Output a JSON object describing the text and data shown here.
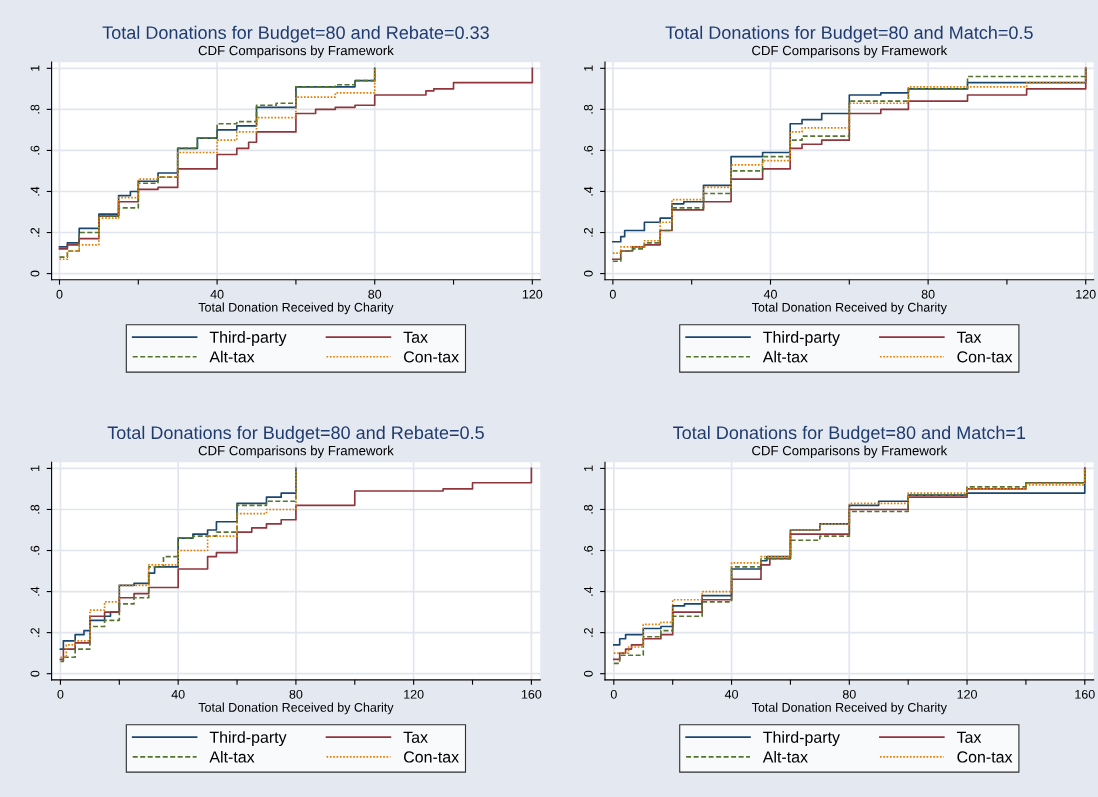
{
  "chart_data": [
    {
      "type": "step",
      "title": "Total Donations for Budget=80 and Rebate=0.33",
      "subtitle": "CDF Comparisons by Framework",
      "xlabel": "Total Donation Received by Charity",
      "xlim": [
        -2,
        122
      ],
      "ylim": [
        -0.03,
        1.03
      ],
      "xticks": [
        0,
        {
          "value": 20,
          "label": null
        },
        40,
        {
          "value": 60,
          "label": null
        },
        80,
        {
          "value": 100,
          "label": null
        },
        120
      ],
      "yticks": [
        0,
        {
          "value": 0.2,
          "label": ".2"
        },
        {
          "value": 0.4,
          "label": ".4"
        },
        {
          "value": 0.6,
          "label": ".6"
        },
        {
          "value": 0.8,
          "label": ".8"
        },
        1
      ],
      "grid": true,
      "legend": "bottom",
      "series": [
        {
          "name": "Third-party",
          "color": "#1a476f",
          "line_style": "solid",
          "x": [
            0,
            2,
            5,
            10,
            15,
            18,
            20,
            25,
            30,
            35,
            40,
            45,
            50,
            60,
            75,
            80
          ],
          "values": [
            0.13,
            0.15,
            0.22,
            0.29,
            0.38,
            0.4,
            0.45,
            0.49,
            0.61,
            0.66,
            0.7,
            0.72,
            0.81,
            0.91,
            0.94,
            1
          ]
        },
        {
          "name": "Tax",
          "color": "#90353b",
          "line_style": "solid",
          "x": [
            0,
            2,
            5,
            10,
            15,
            20,
            25,
            30,
            40,
            45,
            48,
            50,
            60,
            65,
            70,
            75,
            80,
            93,
            95,
            100,
            120
          ],
          "values": [
            0.12,
            0.14,
            0.17,
            0.28,
            0.35,
            0.41,
            0.42,
            0.51,
            0.58,
            0.61,
            0.64,
            0.69,
            0.78,
            0.8,
            0.81,
            0.82,
            0.87,
            0.89,
            0.9,
            0.93,
            1
          ]
        },
        {
          "name": "Alt-tax",
          "color": "#55752f",
          "line_style": "dashed",
          "x": [
            0,
            2,
            5,
            10,
            15,
            20,
            25,
            30,
            35,
            40,
            45,
            50,
            55,
            60,
            70,
            75,
            80
          ],
          "values": [
            0.08,
            0.11,
            0.2,
            0.28,
            0.32,
            0.44,
            0.47,
            0.61,
            0.66,
            0.73,
            0.74,
            0.82,
            0.83,
            0.91,
            0.92,
            0.94,
            1
          ]
        },
        {
          "name": "Con-tax",
          "color": "#e37e00",
          "line_style": "dotted",
          "x": [
            0,
            2,
            5,
            10,
            15,
            20,
            25,
            30,
            40,
            45,
            50,
            60,
            70,
            80
          ],
          "values": [
            0.07,
            0.11,
            0.14,
            0.27,
            0.37,
            0.46,
            0.47,
            0.59,
            0.65,
            0.69,
            0.76,
            0.86,
            0.88,
            1
          ]
        }
      ]
    },
    {
      "type": "step",
      "title": "Total Donations for Budget=80 and Match=0.5",
      "subtitle": "CDF Comparisons by Framework",
      "xlabel": "Total Donation Received by Charity",
      "xlim": [
        -2,
        122
      ],
      "ylim": [
        -0.03,
        1.03
      ],
      "xticks": [
        0,
        {
          "value": 20,
          "label": null
        },
        40,
        {
          "value": 60,
          "label": null
        },
        80,
        {
          "value": 100,
          "label": null
        },
        120
      ],
      "yticks": [
        0,
        {
          "value": 0.2,
          "label": ".2"
        },
        {
          "value": 0.4,
          "label": ".4"
        },
        {
          "value": 0.6,
          "label": ".6"
        },
        {
          "value": 0.8,
          "label": ".8"
        },
        1
      ],
      "grid": true,
      "legend": "bottom",
      "series": [
        {
          "name": "Third-party",
          "color": "#1a476f",
          "line_style": "solid",
          "x": [
            0,
            2,
            3,
            8,
            12,
            15,
            18,
            23,
            30,
            38,
            45,
            48,
            53,
            60,
            68,
            75,
            90,
            120
          ],
          "values": [
            0.155,
            0.18,
            0.21,
            0.25,
            0.27,
            0.34,
            0.35,
            0.43,
            0.57,
            0.59,
            0.73,
            0.75,
            0.78,
            0.87,
            0.88,
            0.9,
            0.93,
            1
          ]
        },
        {
          "name": "Tax",
          "color": "#90353b",
          "line_style": "solid",
          "x": [
            0,
            2,
            5,
            8,
            12,
            15,
            23,
            30,
            38,
            45,
            48,
            53,
            60,
            68,
            75,
            90,
            105,
            120
          ],
          "values": [
            0.07,
            0.11,
            0.13,
            0.14,
            0.21,
            0.31,
            0.35,
            0.46,
            0.51,
            0.61,
            0.63,
            0.65,
            0.78,
            0.8,
            0.84,
            0.87,
            0.9,
            1
          ]
        },
        {
          "name": "Alt-tax",
          "color": "#55752f",
          "line_style": "dashed",
          "x": [
            0,
            2,
            5,
            8,
            12,
            15,
            23,
            30,
            38,
            45,
            48,
            60,
            75,
            90,
            120
          ],
          "values": [
            0.06,
            0.11,
            0.12,
            0.15,
            0.21,
            0.32,
            0.39,
            0.5,
            0.57,
            0.65,
            0.67,
            0.84,
            0.9,
            0.96,
            1
          ]
        },
        {
          "name": "Con-tax",
          "color": "#e37e00",
          "line_style": "dotted",
          "x": [
            0,
            2,
            8,
            12,
            15,
            23,
            30,
            38,
            45,
            48,
            60,
            75,
            105,
            120
          ],
          "values": [
            0.1,
            0.13,
            0.16,
            0.25,
            0.36,
            0.42,
            0.53,
            0.55,
            0.69,
            0.71,
            0.83,
            0.91,
            0.93,
            1
          ]
        }
      ]
    },
    {
      "type": "step",
      "title": "Total Donations for Budget=80 and Rebate=0.5",
      "subtitle": "CDF Comparisons by Framework",
      "xlabel": "Total Donation Received by Charity",
      "xlim": [
        -3,
        163
      ],
      "ylim": [
        -0.03,
        1.03
      ],
      "xticks": [
        0,
        {
          "value": 20,
          "label": null
        },
        40,
        {
          "value": 60,
          "label": null
        },
        80,
        {
          "value": 100,
          "label": null
        },
        120,
        {
          "value": 140,
          "label": null
        },
        160
      ],
      "yticks": [
        0,
        {
          "value": 0.2,
          "label": ".2"
        },
        {
          "value": 0.4,
          "label": ".4"
        },
        {
          "value": 0.6,
          "label": ".6"
        },
        {
          "value": 0.8,
          "label": ".8"
        },
        1
      ],
      "grid": true,
      "legend": "bottom",
      "series": [
        {
          "name": "Third-party",
          "color": "#1a476f",
          "line_style": "solid",
          "x": [
            0,
            1,
            5,
            8,
            10,
            15,
            17,
            20,
            25,
            30,
            32,
            40,
            45,
            50,
            53,
            60,
            70,
            75,
            80
          ],
          "values": [
            0.12,
            0.16,
            0.19,
            0.21,
            0.26,
            0.28,
            0.3,
            0.43,
            0.44,
            0.49,
            0.52,
            0.66,
            0.68,
            0.7,
            0.74,
            0.83,
            0.86,
            0.88,
            1
          ]
        },
        {
          "name": "Tax",
          "color": "#90353b",
          "line_style": "solid",
          "x": [
            0,
            1,
            5,
            10,
            15,
            20,
            25,
            30,
            40,
            50,
            53,
            60,
            65,
            70,
            75,
            80,
            100,
            130,
            140,
            160
          ],
          "values": [
            0.07,
            0.12,
            0.15,
            0.28,
            0.3,
            0.37,
            0.39,
            0.42,
            0.51,
            0.57,
            0.59,
            0.69,
            0.71,
            0.73,
            0.75,
            0.82,
            0.89,
            0.9,
            0.93,
            1
          ]
        },
        {
          "name": "Alt-tax",
          "color": "#55752f",
          "line_style": "dashed",
          "x": [
            0,
            1,
            5,
            10,
            15,
            20,
            25,
            30,
            35,
            40,
            45,
            53,
            60,
            70,
            80
          ],
          "values": [
            0.06,
            0.08,
            0.12,
            0.23,
            0.26,
            0.34,
            0.37,
            0.52,
            0.57,
            0.66,
            0.67,
            0.69,
            0.82,
            0.84,
            1
          ]
        },
        {
          "name": "Con-tax",
          "color": "#e37e00",
          "line_style": "dotted",
          "x": [
            0,
            2,
            5,
            10,
            15,
            20,
            30,
            40,
            50,
            60,
            70,
            80
          ],
          "values": [
            0.08,
            0.14,
            0.16,
            0.31,
            0.35,
            0.43,
            0.53,
            0.6,
            0.67,
            0.78,
            0.8,
            1
          ]
        }
      ]
    },
    {
      "type": "step",
      "title": "Total Donations for Budget=80 and Match=1",
      "subtitle": "CDF Comparisons by Framework",
      "xlabel": "Total Donation Received by Charity",
      "xlim": [
        -3,
        163
      ],
      "ylim": [
        -0.03,
        1.03
      ],
      "xticks": [
        0,
        {
          "value": 20,
          "label": null
        },
        40,
        {
          "value": 60,
          "label": null
        },
        80,
        {
          "value": 100,
          "label": null
        },
        120,
        {
          "value": 140,
          "label": null
        },
        160
      ],
      "yticks": [
        0,
        {
          "value": 0.2,
          "label": ".2"
        },
        {
          "value": 0.4,
          "label": ".4"
        },
        {
          "value": 0.6,
          "label": ".6"
        },
        {
          "value": 0.8,
          "label": ".8"
        },
        1
      ],
      "grid": true,
      "legend": "bottom",
      "series": [
        {
          "name": "Third-party",
          "color": "#1a476f",
          "line_style": "solid",
          "x": [
            0,
            2,
            4,
            10,
            16,
            20,
            24,
            30,
            40,
            50,
            52,
            60,
            70,
            80,
            90,
            100,
            120,
            160
          ],
          "values": [
            0.14,
            0.17,
            0.19,
            0.22,
            0.23,
            0.33,
            0.34,
            0.38,
            0.51,
            0.55,
            0.57,
            0.7,
            0.73,
            0.82,
            0.84,
            0.87,
            0.88,
            1
          ]
        },
        {
          "name": "Tax",
          "color": "#90353b",
          "line_style": "solid",
          "x": [
            0,
            2,
            4,
            6,
            10,
            16,
            20,
            30,
            40,
            50,
            53,
            60,
            80,
            100,
            120,
            140,
            160
          ],
          "values": [
            0.07,
            0.1,
            0.12,
            0.14,
            0.17,
            0.19,
            0.3,
            0.36,
            0.46,
            0.53,
            0.56,
            0.68,
            0.8,
            0.86,
            0.9,
            0.93,
            1
          ]
        },
        {
          "name": "Alt-tax",
          "color": "#55752f",
          "line_style": "dashed",
          "x": [
            0,
            2,
            10,
            16,
            20,
            30,
            40,
            50,
            60,
            70,
            80,
            100,
            120,
            140,
            160
          ],
          "values": [
            0.05,
            0.09,
            0.18,
            0.21,
            0.28,
            0.35,
            0.52,
            0.56,
            0.65,
            0.67,
            0.79,
            0.87,
            0.91,
            0.93,
            1
          ]
        },
        {
          "name": "Con-tax",
          "color": "#e37e00",
          "line_style": "dotted",
          "x": [
            0,
            5,
            10,
            16,
            20,
            30,
            40,
            50,
            60,
            70,
            80,
            100,
            120,
            140,
            160
          ],
          "values": [
            0.1,
            0.13,
            0.24,
            0.25,
            0.36,
            0.4,
            0.54,
            0.57,
            0.7,
            0.73,
            0.83,
            0.88,
            0.9,
            0.92,
            1
          ]
        }
      ]
    }
  ]
}
